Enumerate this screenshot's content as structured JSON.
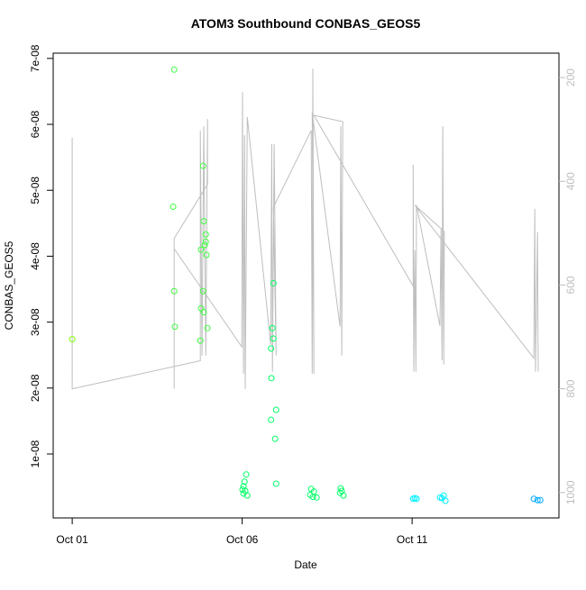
{
  "chart_data": {
    "type": "scatter",
    "title": "ATOM3 Southbound CONBAS_GEOS5",
    "xlabel": "Date",
    "ylabel": "CONBAS_GEOS5",
    "xlim": [
      0.44,
      15.32
    ],
    "xticks": [
      {
        "value": 1,
        "label": "Oct 01"
      },
      {
        "value": 6,
        "label": "Oct 06"
      },
      {
        "value": 11,
        "label": "Oct 11"
      }
    ],
    "ylim": [
      3e-10,
      7.08e-08
    ],
    "yticks": [
      {
        "value": 1e-08,
        "label": "1e-08"
      },
      {
        "value": 2e-08,
        "label": "2e-08"
      },
      {
        "value": 3e-08,
        "label": "3e-08"
      },
      {
        "value": 4e-08,
        "label": "4e-08"
      },
      {
        "value": 5e-08,
        "label": "5e-08"
      },
      {
        "value": 6e-08,
        "label": "6e-08"
      },
      {
        "value": 7e-08,
        "label": "7e-08"
      }
    ],
    "y2lim": [
      1049,
      153
    ],
    "y2ticks": [
      200,
      400,
      600,
      800,
      1000
    ],
    "series": [
      {
        "x": [
          1.0,
          4.0,
          3.97,
          4.0,
          4.02,
          4.77,
          4.85,
          4.79,
          4.79,
          4.85,
          4.87,
          4.87,
          4.93,
          4.93,
          4.9,
          4.95,
          4.98,
          6.12,
          6.07,
          6.04,
          6.09,
          6.04,
          6.15,
          6.01,
          6.92,
          6.89,
          6.92,
          6.85,
          6.86,
          7.0,
          6.85,
          6.97,
          7.0,
          8.03,
          8.0,
          8.08,
          8.19,
          8.11,
          8.9,
          8.88,
          8.98,
          8.93,
          11.03,
          11.13,
          11.08,
          11.82,
          11.93,
          11.98,
          11.88,
          14.58,
          14.69,
          14.77
        ],
        "values": [
          2.74e-08,
          6.83e-08,
          4.75e-08,
          3.47e-08,
          2.93e-08,
          2.72e-08,
          5.37e-08,
          4.1e-08,
          3.21e-08,
          3.47e-08,
          3.15e-08,
          4.53e-08,
          4.33e-08,
          4.22e-08,
          4.17e-08,
          4.02e-08,
          2.91e-08,
          6.9e-09,
          5.8e-09,
          5.1e-09,
          4.4e-09,
          4e-09,
          3.7e-09,
          4.6e-09,
          3.59e-08,
          2.91e-08,
          2.75e-08,
          2.6e-08,
          2.15e-08,
          1.67e-08,
          1.52e-08,
          1.23e-08,
          5.5e-09,
          4.7e-09,
          3.8e-09,
          3.5e-09,
          3.4e-09,
          4.3e-09,
          4.8e-09,
          4.1e-09,
          3.7e-09,
          4.4e-09,
          3.2e-09,
          3.2e-09,
          3.3e-09,
          3.4e-09,
          3.7e-09,
          2.9e-09,
          3.3e-09,
          3.2e-09,
          3e-09,
          3e-09
        ],
        "colors": [
          "#7fff00",
          "#40ff40",
          "#40ff40",
          "#40ff40",
          "#40ff40",
          "#40ff40",
          "#40ff40",
          "#40ff40",
          "#40ff40",
          "#40ff40",
          "#40ff40",
          "#40ff40",
          "#40ff40",
          "#40ff40",
          "#40ff40",
          "#40ff40",
          "#40ff40",
          "#00ff66",
          "#00ff66",
          "#00ff66",
          "#00ff66",
          "#00ff66",
          "#00ff66",
          "#00ff66",
          "#00ff66",
          "#00ff66",
          "#00ff66",
          "#00ff66",
          "#00ff66",
          "#00ff66",
          "#00ff66",
          "#00ff66",
          "#00ff66",
          "#00ff66",
          "#00ff66",
          "#00ff66",
          "#00ff66",
          "#00ff66",
          "#00ff66",
          "#00ff66",
          "#00ff66",
          "#00ff66",
          "#00f0ff",
          "#00f0ff",
          "#00f0ff",
          "#00f0ff",
          "#00f0ff",
          "#00f0ff",
          "#00f0ff",
          "#00aaff",
          "#00aaff",
          "#00aaff"
        ]
      },
      {
        "type": "line",
        "axis": "y2",
        "color": "#bebebe",
        "x": [
          1.0,
          1.0,
          4.77,
          4.77,
          4.82,
          4.87,
          4.93,
          4.98,
          4.98,
          4.0,
          4.0,
          4.0,
          5.99,
          6.01,
          6.04,
          6.07,
          6.09,
          6.15,
          6.84,
          6.87,
          6.89,
          6.94,
          7.0,
          6.92,
          8.03,
          8.06,
          8.08,
          8.11,
          8.06,
          8.88,
          8.9,
          8.93,
          8.96,
          8.11,
          11.03,
          11.03,
          11.05,
          11.08,
          11.11,
          11.13,
          11.82,
          11.85,
          11.88,
          11.9,
          11.93,
          11.95,
          11.08,
          14.58,
          14.61,
          14.63,
          14.69,
          14.71
        ],
        "values": [
          316,
          800,
          746,
          302,
          736,
          294,
          736,
          280,
          406,
          510,
          800,
          530,
          719,
          228,
          771,
          311,
          800,
          276,
          715,
          328,
          767,
          328,
          736,
          450,
          302,
          771,
          183,
          771,
          268,
          680,
          294,
          736,
          285,
          273,
          602,
          368,
          767,
          533,
          767,
          446,
          679,
          493,
          745,
          294,
          753,
          497,
          446,
          741,
          453,
          767,
          498,
          767
        ]
      }
    ]
  }
}
